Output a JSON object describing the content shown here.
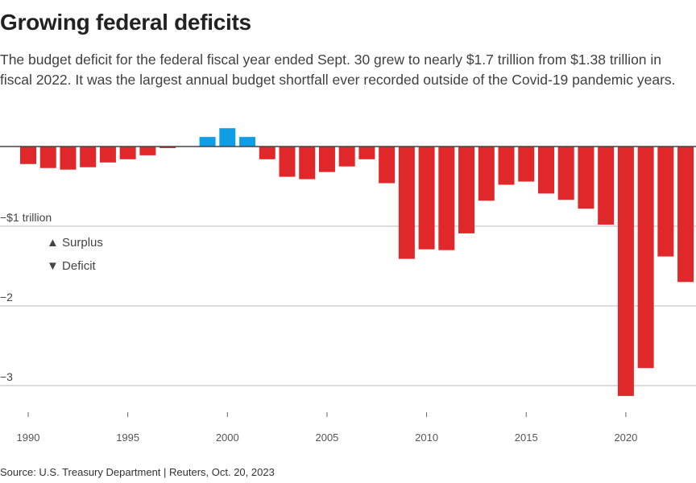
{
  "title": "Growing federal deficits",
  "subtitle": "The budget deficit for the federal fiscal year ended Sept. 30 grew to nearly $1.7 trillion from $1.38 trillion in fiscal 2022. It was the largest annual budget shortfall ever recorded outside of the Covid-19 pandemic years.",
  "source": "Source: U.S. Treasury Department | Reuters, Oct. 20, 2023",
  "chart_data": {
    "type": "bar",
    "title": "Growing federal deficits",
    "ylabel": "",
    "xlabel": "",
    "unit": "trillion dollars",
    "ylim": [
      -3.3,
      0.35
    ],
    "grid": true,
    "colors": {
      "surplus": "#0f9ee6",
      "deficit": "#e0282a"
    },
    "y_ticks": [
      {
        "value": -1,
        "label": "−$1 trillion"
      },
      {
        "value": -2,
        "label": "−2"
      },
      {
        "value": -3,
        "label": "−3"
      }
    ],
    "x_ticks": [
      "1990",
      "1995",
      "2000",
      "2005",
      "2010",
      "2015",
      "2020"
    ],
    "legend": [
      {
        "symbol": "▲",
        "label": "Surplus"
      },
      {
        "symbol": "▼",
        "label": "Deficit"
      }
    ],
    "legend_placement": "left",
    "categories": [
      1990,
      1991,
      1992,
      1993,
      1994,
      1995,
      1996,
      1997,
      1998,
      1999,
      2000,
      2001,
      2002,
      2003,
      2004,
      2005,
      2006,
      2007,
      2008,
      2009,
      2010,
      2011,
      2012,
      2013,
      2014,
      2015,
      2016,
      2017,
      2018,
      2019,
      2020,
      2021,
      2022,
      2023
    ],
    "values": [
      -0.22,
      -0.27,
      -0.29,
      -0.26,
      -0.2,
      -0.16,
      -0.11,
      -0.02,
      0.0,
      0.12,
      0.23,
      0.12,
      -0.16,
      -0.38,
      -0.41,
      -0.32,
      -0.25,
      -0.16,
      -0.46,
      -1.41,
      -1.29,
      -1.3,
      -1.09,
      -0.68,
      -0.48,
      -0.44,
      -0.59,
      -0.67,
      -0.78,
      -0.98,
      -3.13,
      -2.78,
      -1.38,
      -1.7
    ]
  }
}
